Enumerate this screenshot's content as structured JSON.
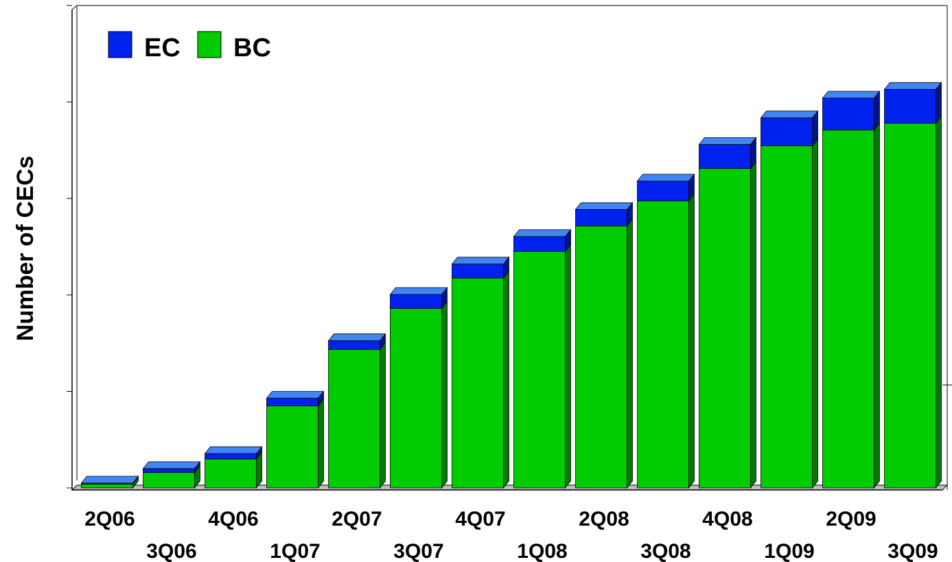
{
  "chart_data": {
    "type": "bar",
    "stacked": true,
    "three_d": true,
    "title": "",
    "xlabel": "",
    "ylabel": "Number of CECs",
    "ylim": [
      0,
      100
    ],
    "y_tick_values": [
      0,
      20,
      40,
      60,
      80,
      100
    ],
    "y_tick_labels_shown": false,
    "categories": [
      "2Q06",
      "3Q06",
      "4Q06",
      "1Q07",
      "2Q07",
      "3Q07",
      "4Q07",
      "1Q08",
      "2Q08",
      "3Q08",
      "4Q08",
      "1Q09",
      "2Q09",
      "3Q09"
    ],
    "series": [
      {
        "name": "BC",
        "color": "#00cc00",
        "values": [
          0.8,
          3.2,
          6.0,
          17.0,
          28.7,
          37.2,
          43.5,
          49.0,
          54.3,
          59.5,
          66.2,
          70.9,
          74.2,
          75.6
        ]
      },
      {
        "name": "EC",
        "color": "#0022ee",
        "values": [
          0.2,
          0.8,
          1.1,
          1.6,
          1.8,
          2.9,
          2.9,
          3.1,
          3.4,
          4.1,
          5.0,
          5.8,
          6.6,
          7.0
        ]
      }
    ],
    "legend": {
      "position": "top-left",
      "order": [
        "EC",
        "BC"
      ]
    },
    "grid": false
  }
}
